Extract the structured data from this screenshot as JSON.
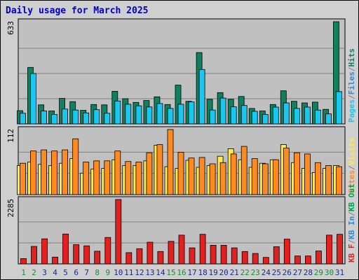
{
  "title": "Daily usage for March 2025",
  "colors": {
    "pages": "#0f7f5f",
    "files": "#19c8f0",
    "hits": "#0f8060",
    "visits": "#ffe84a",
    "sites": "#ff8a1f",
    "kb_in": "#2f8ad8",
    "kb_out": "#00a050",
    "kbf": "#e41f1f",
    "panel_bg": "#c0c0c0",
    "grid": "#808080",
    "title": "#0000cc",
    "weekend_day": "#1a8a3a",
    "weekday_day": "#1a2a8a"
  },
  "panel1_legend": [
    {
      "text": "Pages",
      "colorKey": "files"
    },
    {
      "text": "/",
      "colorKey": "grid"
    },
    {
      "text": "Files",
      "colorKey": "kb_in"
    },
    {
      "text": "/",
      "colorKey": "grid"
    },
    {
      "text": "Hits",
      "colorKey": "hits"
    }
  ],
  "panel2_legend": [
    {
      "text": "Sites",
      "colorKey": "sites"
    },
    {
      "text": "/",
      "colorKey": "grid"
    },
    {
      "text": "Visits",
      "colorKey": "visits"
    }
  ],
  "panel3_legend": [
    {
      "text": "KB F",
      "colorKey": "kbf"
    },
    {
      "text": "/",
      "colorKey": "grid"
    },
    {
      "text": "KB In",
      "colorKey": "kb_in"
    },
    {
      "text": "/",
      "colorKey": "grid"
    },
    {
      "text": "KB Out",
      "colorKey": "kb_out"
    }
  ],
  "chart_data": {
    "type": "bar",
    "title": "Daily usage for March 2025",
    "x": [
      1,
      2,
      3,
      4,
      5,
      6,
      7,
      8,
      9,
      10,
      11,
      12,
      13,
      14,
      15,
      16,
      17,
      18,
      19,
      20,
      21,
      22,
      23,
      24,
      25,
      26,
      27,
      28,
      29,
      30,
      31
    ],
    "weekend_days": [
      1,
      2,
      8,
      9,
      15,
      16,
      22,
      23,
      29,
      30
    ],
    "panels": [
      {
        "name": "hits-files",
        "ymax_label": "633",
        "ymax": 633,
        "series": [
          {
            "name": "Hits",
            "colorKey": "hits",
            "values": [
              82,
              350,
              118,
              80,
              158,
              138,
              84,
              120,
              118,
              202,
              156,
              133,
              145,
              168,
              120,
              240,
              140,
              442,
              152,
              194,
              152,
              170,
              96,
              80,
              120,
              205,
              140,
              130,
              135,
              90,
              633
            ]
          },
          {
            "name": "Files",
            "colorKey": "files",
            "values": [
              66,
              312,
              80,
              58,
              92,
              86,
              68,
              88,
              66,
              142,
              122,
              112,
              105,
              126,
              96,
              122,
              136,
              337,
              86,
              160,
              106,
              114,
              78,
              58,
              104,
              130,
              96,
              104,
              86,
              62,
              200
            ]
          }
        ]
      },
      {
        "name": "visits-sites",
        "ymax_label": "112",
        "ymax": 112,
        "series": [
          {
            "name": "Visits",
            "colorKey": "visits",
            "values": [
              50,
              56,
              52,
              50,
              54,
              62,
              37,
              44,
              45,
              60,
              50,
              50,
              58,
              85,
              48,
              45,
              59,
              47,
              50,
              66,
              79,
              60,
              47,
              54,
              60,
              86,
              55,
              45,
              38,
              45,
              50
            ]
          },
          {
            "name": "Sites",
            "colorKey": "sites",
            "values": [
              54,
              75,
              77,
              75,
              77,
              96,
              56,
              58,
              58,
              75,
              57,
              56,
              72,
              86,
              112,
              73,
              63,
              64,
              53,
              55,
              70,
              83,
              62,
              53,
              60,
              80,
              72,
              70,
              55,
              50,
              48
            ]
          }
        ]
      },
      {
        "name": "kbf",
        "ymax_label": "2285",
        "ymax": 2285,
        "series": [
          {
            "name": "KB F",
            "colorKey": "kbf",
            "values": [
              190,
              620,
              890,
              240,
              1060,
              680,
              640,
              450,
              940,
              2285,
              400,
              540,
              770,
              440,
              800,
              1020,
              570,
              1050,
              660,
              660,
              570,
              440,
              370,
              230,
              610,
              880,
              280,
              280,
              460,
              1020,
              1050
            ]
          }
        ]
      }
    ]
  }
}
